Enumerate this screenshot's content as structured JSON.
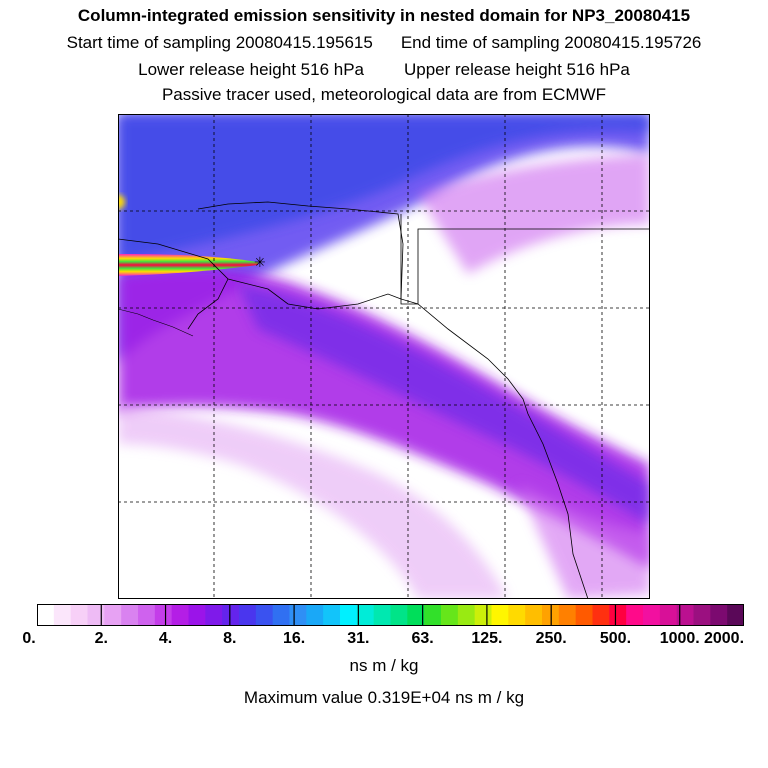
{
  "header": {
    "title": "Column-integrated emission sensitivity in nested domain for NP3_20080415",
    "start_time": "Start time of sampling 20080415.195615",
    "end_time": "End time of sampling 20080415.195726",
    "lower_release": "Lower release height  516 hPa",
    "upper_release": "Upper release height  516 hPa",
    "tracer_note": "Passive tracer used, meteorological data are from ECMWF"
  },
  "colorbar": {
    "tick_labels": [
      "0.",
      "2.",
      "4.",
      "8.",
      "16.",
      "31.",
      "63.",
      "125.",
      "250.",
      "500.",
      "1000.",
      "2000."
    ],
    "colors": [
      "#ffffff",
      "#fbe6fb",
      "#f7d0f7",
      "#eebbf5",
      "#e7a2f3",
      "#d982f0",
      "#cf62ee",
      "#c43de9",
      "#b41ee6",
      "#9b14e9",
      "#7f1aea",
      "#6424ec",
      "#4a36ee",
      "#3a52f0",
      "#3070f2",
      "#2f8ff5",
      "#1aa8f7",
      "#12c4fa",
      "#00f0ff",
      "#00ecd8",
      "#00e8b0",
      "#00e488",
      "#00de5a",
      "#32e02a",
      "#66e61a",
      "#99ea12",
      "#ccef0a",
      "#fff600",
      "#ffda00",
      "#ffbe00",
      "#ffa200",
      "#ff8000",
      "#ff5a00",
      "#ff3010",
      "#ff0040",
      "#ff0a8a",
      "#f210a0",
      "#d81098",
      "#bb1090",
      "#9b1080",
      "#7c0a70",
      "#5a0858"
    ],
    "unit": "ns m / kg"
  },
  "footer": {
    "max_value": "Maximum value  0.319E+04 ns m / kg"
  },
  "map": {
    "background": "#ffffff",
    "plume_main_color": "#9b1ee6",
    "plume_outer_color": "#3b48e8",
    "release_site_marker": "star"
  }
}
